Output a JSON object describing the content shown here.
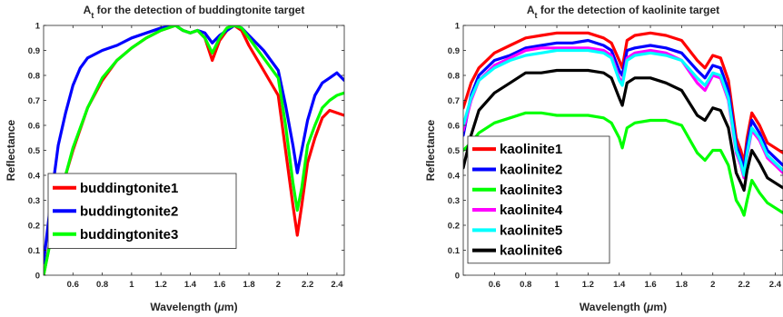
{
  "chart_data": [
    {
      "type": "line",
      "title": "A_t for the detection of buddingtonite target",
      "title_main": "A",
      "title_sub": "t",
      "title_rest": " for the detection of buddingtonite target",
      "xlabel": "Wavelength (μm)",
      "xlabel_pre": "Wavelength (",
      "xlabel_mu": "μ",
      "xlabel_post": "m)",
      "ylabel": "Reflectance",
      "xlim": [
        0.4,
        2.45
      ],
      "ylim": [
        0,
        1
      ],
      "xticks": [
        0.6,
        0.8,
        1,
        1.2,
        1.4,
        1.6,
        1.8,
        2,
        2.2,
        2.4
      ],
      "xtick_labels": [
        "0.6",
        "0.8",
        "1",
        "1.2",
        "1.4",
        "1.6",
        "1.8",
        "2",
        "2.2",
        "2.4"
      ],
      "yticks": [
        0,
        0.1,
        0.2,
        0.3,
        0.4,
        0.5,
        0.6,
        0.7,
        0.8,
        0.9,
        1
      ],
      "ytick_labels": [
        "0",
        "0.1",
        "0.2",
        "0.3",
        "0.4",
        "0.5",
        "0.6",
        "0.7",
        "0.8",
        "0.9",
        "1"
      ],
      "grid": false,
      "legend_position": "bottom-left",
      "series": [
        {
          "name": "buddingtonite1",
          "color": "#ff0000",
          "x": [
            0.4,
            0.5,
            0.6,
            0.7,
            0.8,
            0.9,
            1.0,
            1.1,
            1.2,
            1.3,
            1.35,
            1.4,
            1.45,
            1.5,
            1.55,
            1.6,
            1.65,
            1.7,
            1.75,
            1.8,
            1.9,
            2.0,
            2.05,
            2.1,
            2.13,
            2.16,
            2.2,
            2.25,
            2.3,
            2.35,
            2.4,
            2.45
          ],
          "y": [
            0.0,
            0.3,
            0.5,
            0.67,
            0.78,
            0.86,
            0.91,
            0.95,
            0.98,
            1.0,
            0.98,
            0.97,
            0.98,
            0.95,
            0.86,
            0.94,
            0.98,
            1.0,
            0.98,
            0.92,
            0.82,
            0.72,
            0.5,
            0.28,
            0.16,
            0.28,
            0.45,
            0.55,
            0.63,
            0.66,
            0.65,
            0.64
          ]
        },
        {
          "name": "buddingtonite2",
          "color": "#0000ff",
          "x": [
            0.4,
            0.45,
            0.5,
            0.55,
            0.6,
            0.65,
            0.7,
            0.8,
            0.9,
            1.0,
            1.1,
            1.2,
            1.3,
            1.35,
            1.4,
            1.45,
            1.5,
            1.55,
            1.6,
            1.65,
            1.7,
            1.75,
            1.8,
            1.9,
            2.0,
            2.05,
            2.1,
            2.13,
            2.16,
            2.2,
            2.25,
            2.3,
            2.35,
            2.4,
            2.45
          ],
          "y": [
            0.05,
            0.3,
            0.52,
            0.65,
            0.76,
            0.83,
            0.87,
            0.9,
            0.92,
            0.95,
            0.97,
            0.99,
            1.0,
            0.98,
            0.97,
            0.98,
            0.97,
            0.93,
            0.96,
            0.98,
            1.0,
            0.99,
            0.96,
            0.9,
            0.82,
            0.68,
            0.52,
            0.41,
            0.5,
            0.62,
            0.72,
            0.77,
            0.79,
            0.81,
            0.78
          ]
        },
        {
          "name": "buddingtonite3",
          "color": "#00ff00",
          "x": [
            0.4,
            0.5,
            0.6,
            0.7,
            0.8,
            0.9,
            1.0,
            1.1,
            1.2,
            1.3,
            1.35,
            1.4,
            1.45,
            1.5,
            1.55,
            1.6,
            1.65,
            1.7,
            1.75,
            1.8,
            1.9,
            2.0,
            2.05,
            2.1,
            2.13,
            2.16,
            2.2,
            2.25,
            2.3,
            2.35,
            2.4,
            2.45
          ],
          "y": [
            0.0,
            0.29,
            0.51,
            0.67,
            0.79,
            0.86,
            0.91,
            0.95,
            0.98,
            1.0,
            0.98,
            0.97,
            0.98,
            0.95,
            0.89,
            0.95,
            0.99,
            1.0,
            0.99,
            0.95,
            0.87,
            0.79,
            0.6,
            0.37,
            0.26,
            0.35,
            0.52,
            0.6,
            0.67,
            0.7,
            0.72,
            0.73
          ]
        }
      ]
    },
    {
      "type": "line",
      "title": "A_t for the detection of kaolinite target",
      "title_main": "A",
      "title_sub": "t",
      "title_rest": " for the detection of kaolinite target",
      "xlabel": "Wavelength (μm)",
      "xlabel_pre": "Wavelength (",
      "xlabel_mu": "μ",
      "xlabel_post": "m)",
      "ylabel": "Reflectance",
      "xlim": [
        0.4,
        2.45
      ],
      "ylim": [
        0,
        1
      ],
      "xticks": [
        0.6,
        0.8,
        1,
        1.2,
        1.4,
        1.6,
        1.8,
        2,
        2.2,
        2.4
      ],
      "xtick_labels": [
        "0.6",
        "0.8",
        "1",
        "1.2",
        "1.4",
        "1.6",
        "1.8",
        "2",
        "2.2",
        "2.4"
      ],
      "yticks": [
        0,
        0.1,
        0.2,
        0.3,
        0.4,
        0.5,
        0.6,
        0.7,
        0.8,
        0.9,
        1
      ],
      "ytick_labels": [
        "0",
        "0.1",
        "0.2",
        "0.3",
        "0.4",
        "0.5",
        "0.6",
        "0.7",
        "0.8",
        "0.9",
        "1"
      ],
      "grid": false,
      "legend_position": "bottom-left",
      "series": [
        {
          "name": "kaolinite1",
          "color": "#ff0000",
          "x": [
            0.4,
            0.45,
            0.5,
            0.6,
            0.7,
            0.8,
            0.9,
            1.0,
            1.1,
            1.2,
            1.3,
            1.35,
            1.4,
            1.42,
            1.45,
            1.5,
            1.6,
            1.7,
            1.8,
            1.9,
            1.95,
            2.0,
            2.05,
            2.1,
            2.15,
            2.18,
            2.2,
            2.22,
            2.25,
            2.3,
            2.35,
            2.4,
            2.45
          ],
          "y": [
            0.67,
            0.77,
            0.83,
            0.89,
            0.92,
            0.95,
            0.96,
            0.97,
            0.97,
            0.97,
            0.95,
            0.93,
            0.86,
            0.83,
            0.94,
            0.96,
            0.97,
            0.96,
            0.94,
            0.86,
            0.83,
            0.88,
            0.87,
            0.78,
            0.55,
            0.5,
            0.45,
            0.55,
            0.65,
            0.6,
            0.53,
            0.51,
            0.49
          ]
        },
        {
          "name": "kaolinite2",
          "color": "#0000ff",
          "x": [
            0.4,
            0.45,
            0.5,
            0.6,
            0.7,
            0.8,
            0.9,
            1.0,
            1.1,
            1.2,
            1.3,
            1.35,
            1.4,
            1.42,
            1.45,
            1.5,
            1.6,
            1.7,
            1.8,
            1.9,
            1.95,
            2.0,
            2.05,
            2.1,
            2.15,
            2.18,
            2.2,
            2.22,
            2.25,
            2.3,
            2.35,
            2.4,
            2.45
          ],
          "y": [
            0.56,
            0.72,
            0.8,
            0.86,
            0.88,
            0.91,
            0.92,
            0.93,
            0.93,
            0.94,
            0.92,
            0.9,
            0.82,
            0.8,
            0.9,
            0.91,
            0.92,
            0.91,
            0.89,
            0.82,
            0.79,
            0.84,
            0.83,
            0.74,
            0.52,
            0.47,
            0.42,
            0.52,
            0.62,
            0.57,
            0.5,
            0.47,
            0.44
          ]
        },
        {
          "name": "kaolinite3",
          "color": "#00ff00",
          "x": [
            0.4,
            0.45,
            0.5,
            0.6,
            0.7,
            0.8,
            0.9,
            1.0,
            1.1,
            1.2,
            1.3,
            1.35,
            1.4,
            1.42,
            1.45,
            1.5,
            1.6,
            1.7,
            1.8,
            1.9,
            1.95,
            2.0,
            2.05,
            2.1,
            2.15,
            2.18,
            2.2,
            2.22,
            2.25,
            2.3,
            2.35,
            2.4,
            2.45
          ],
          "y": [
            0.5,
            0.53,
            0.57,
            0.61,
            0.63,
            0.65,
            0.65,
            0.64,
            0.64,
            0.64,
            0.63,
            0.61,
            0.55,
            0.51,
            0.59,
            0.61,
            0.62,
            0.62,
            0.6,
            0.49,
            0.46,
            0.5,
            0.5,
            0.44,
            0.3,
            0.27,
            0.24,
            0.3,
            0.38,
            0.33,
            0.29,
            0.27,
            0.25
          ]
        },
        {
          "name": "kaolinite4",
          "color": "#ff00ff",
          "x": [
            0.4,
            0.45,
            0.5,
            0.6,
            0.7,
            0.8,
            0.9,
            1.0,
            1.1,
            1.2,
            1.3,
            1.35,
            1.4,
            1.42,
            1.45,
            1.5,
            1.6,
            1.7,
            1.8,
            1.9,
            1.95,
            2.0,
            2.05,
            2.1,
            2.15,
            2.18,
            2.2,
            2.22,
            2.25,
            2.3,
            2.35,
            2.4,
            2.45
          ],
          "y": [
            0.58,
            0.7,
            0.78,
            0.84,
            0.87,
            0.9,
            0.91,
            0.91,
            0.91,
            0.91,
            0.9,
            0.88,
            0.79,
            0.77,
            0.87,
            0.89,
            0.9,
            0.89,
            0.86,
            0.77,
            0.74,
            0.8,
            0.79,
            0.7,
            0.49,
            0.44,
            0.39,
            0.48,
            0.58,
            0.54,
            0.47,
            0.44,
            0.41
          ]
        },
        {
          "name": "kaolinite5",
          "color": "#00ffff",
          "x": [
            0.4,
            0.45,
            0.5,
            0.6,
            0.7,
            0.8,
            0.9,
            1.0,
            1.1,
            1.2,
            1.3,
            1.35,
            1.4,
            1.42,
            1.45,
            1.5,
            1.6,
            1.7,
            1.8,
            1.9,
            1.95,
            2.0,
            2.05,
            2.1,
            2.15,
            2.18,
            2.2,
            2.22,
            2.25,
            2.3,
            2.35,
            2.4,
            2.45
          ],
          "y": [
            0.6,
            0.71,
            0.78,
            0.83,
            0.86,
            0.88,
            0.89,
            0.9,
            0.9,
            0.9,
            0.89,
            0.87,
            0.78,
            0.76,
            0.86,
            0.88,
            0.89,
            0.88,
            0.86,
            0.79,
            0.76,
            0.81,
            0.8,
            0.71,
            0.5,
            0.45,
            0.4,
            0.49,
            0.59,
            0.55,
            0.48,
            0.45,
            0.42
          ]
        },
        {
          "name": "kaolinite6",
          "color": "#000000",
          "x": [
            0.4,
            0.45,
            0.5,
            0.6,
            0.7,
            0.8,
            0.9,
            1.0,
            1.1,
            1.2,
            1.3,
            1.35,
            1.4,
            1.42,
            1.45,
            1.5,
            1.6,
            1.7,
            1.8,
            1.9,
            1.95,
            2.0,
            2.05,
            2.1,
            2.15,
            2.18,
            2.2,
            2.22,
            2.25,
            2.3,
            2.35,
            2.4,
            2.45
          ],
          "y": [
            0.43,
            0.56,
            0.66,
            0.73,
            0.77,
            0.81,
            0.81,
            0.82,
            0.82,
            0.82,
            0.81,
            0.79,
            0.71,
            0.68,
            0.77,
            0.79,
            0.79,
            0.77,
            0.74,
            0.64,
            0.62,
            0.67,
            0.66,
            0.59,
            0.41,
            0.37,
            0.34,
            0.42,
            0.5,
            0.45,
            0.39,
            0.37,
            0.35
          ]
        }
      ]
    }
  ]
}
